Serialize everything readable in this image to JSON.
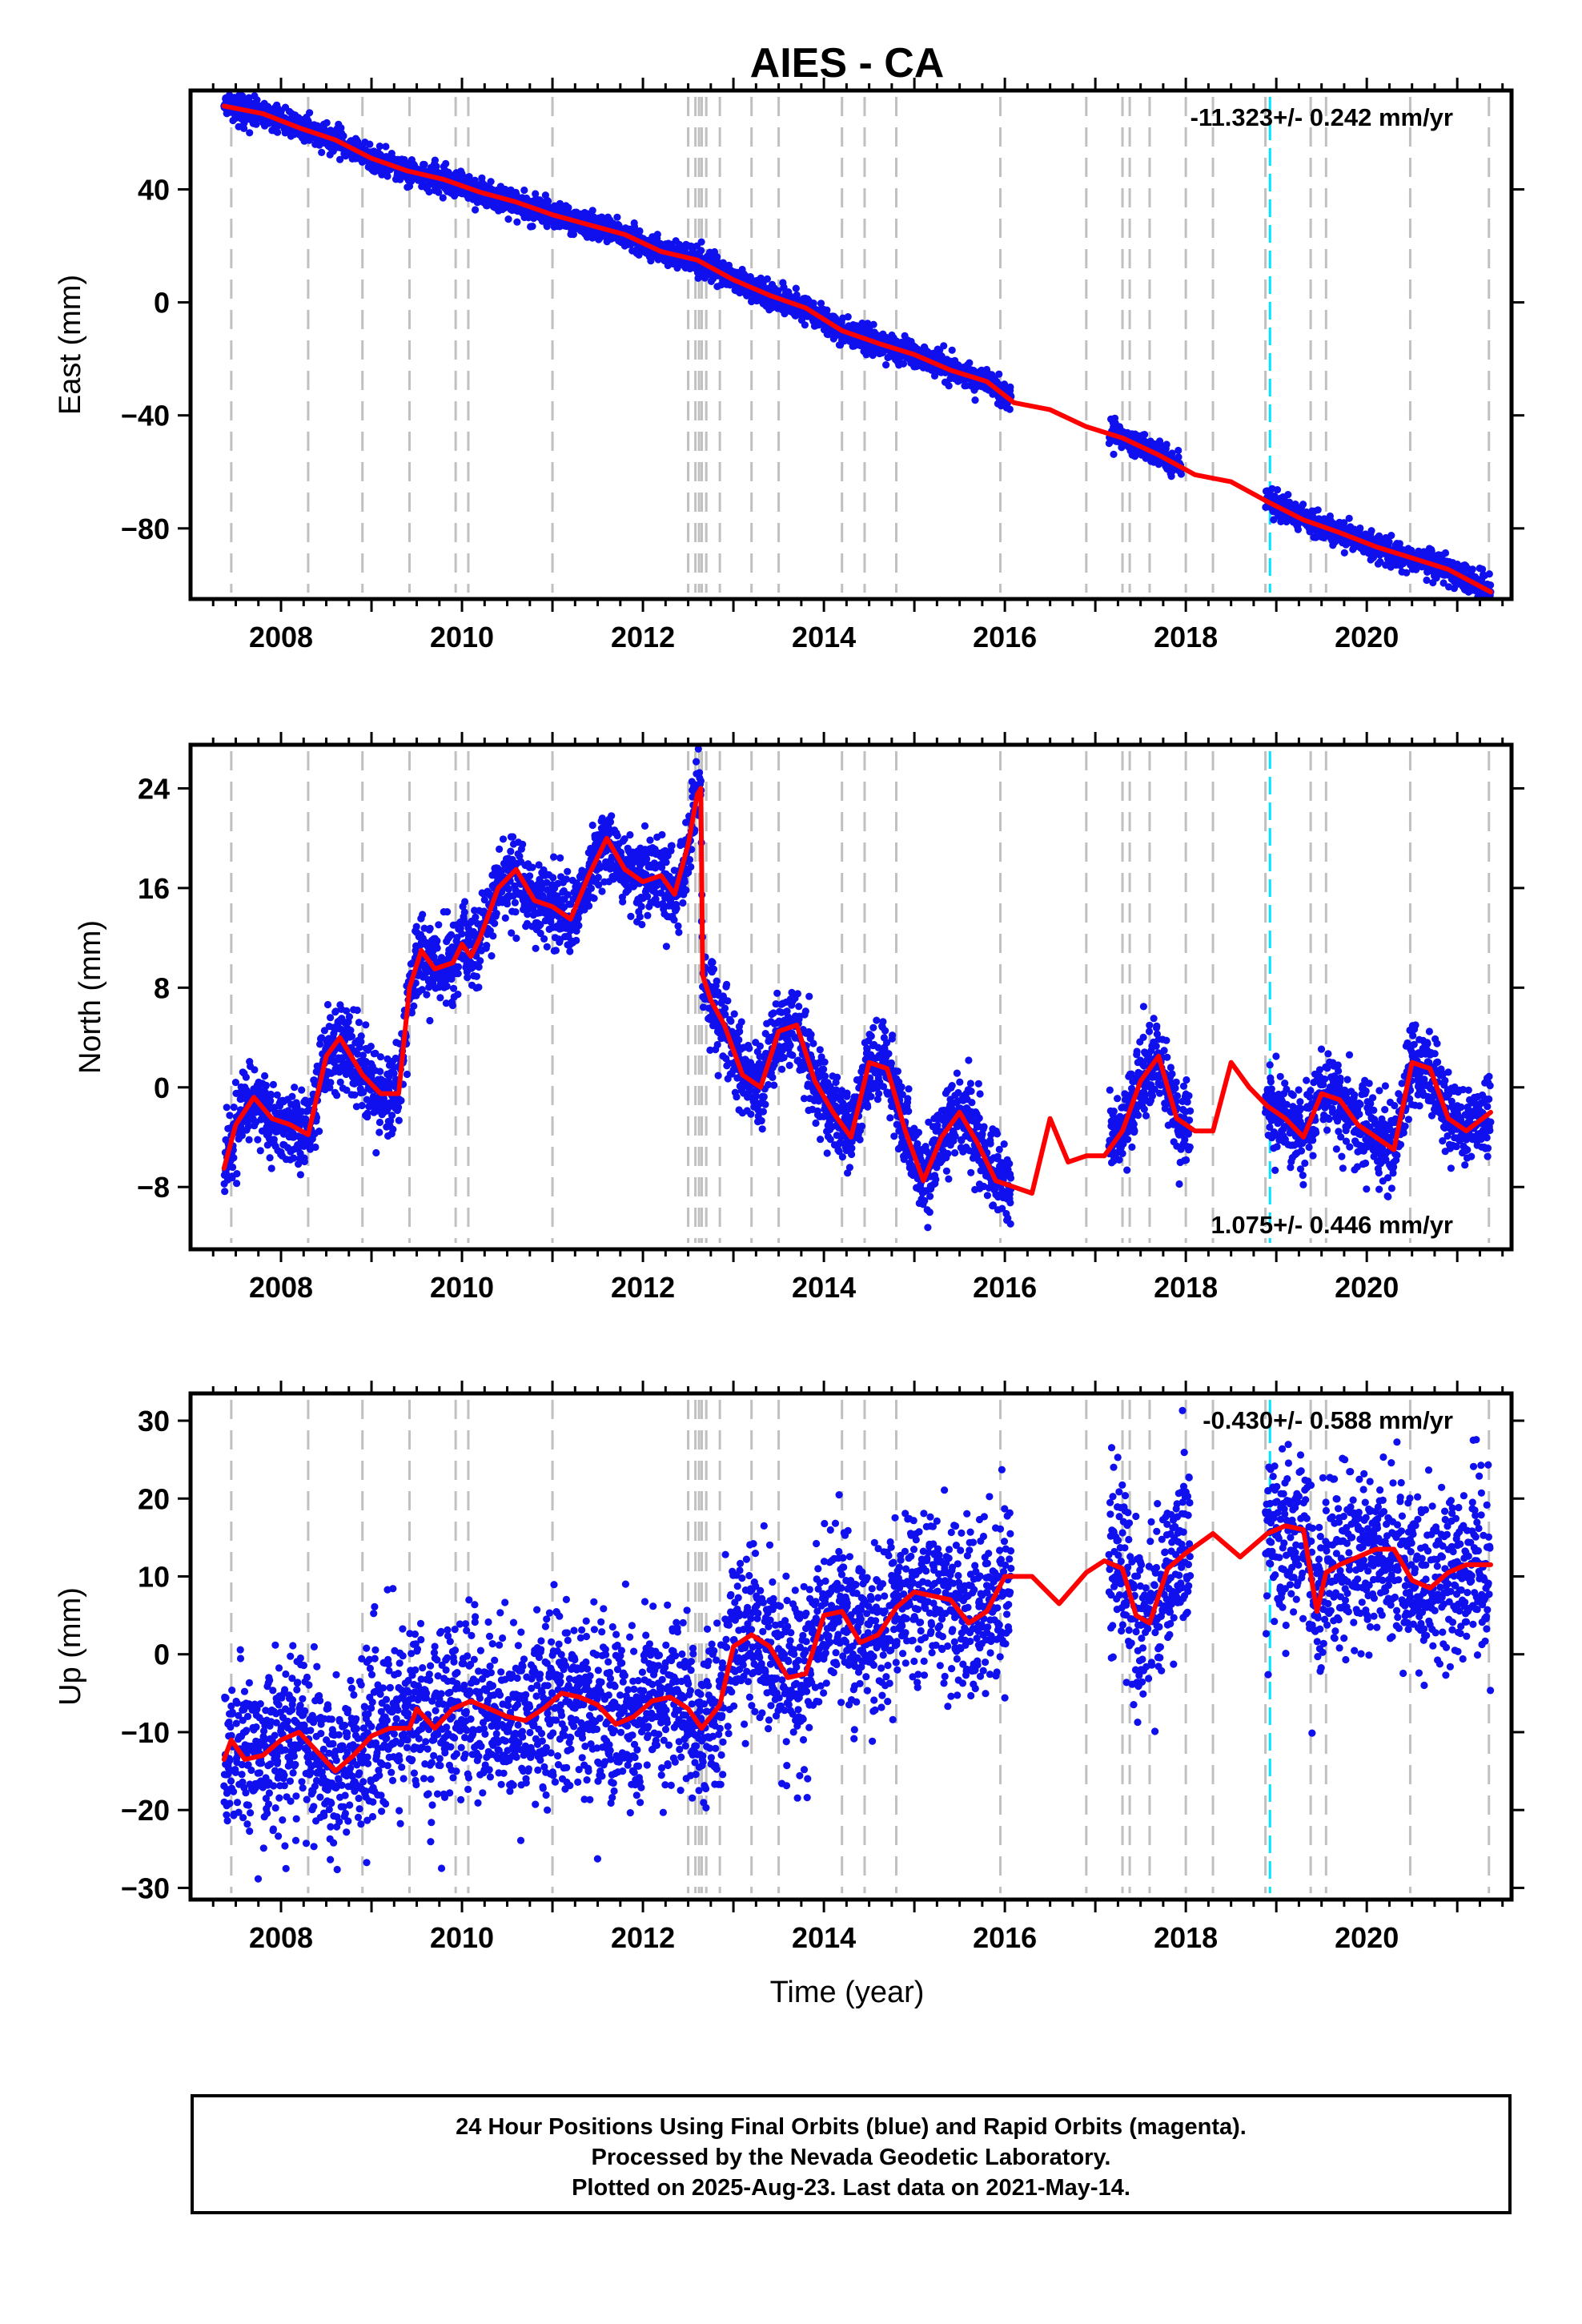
{
  "page": {
    "title": "AIES - CA",
    "xlabel": "Time (year)",
    "footer_lines": [
      "24 Hour Positions Using Final Orbits (blue) and Rapid Orbits (magenta).",
      "Processed by the Nevada Geodetic Laboratory.",
      "Plotted on 2025-Aug-23. Last data on 2021-May-14."
    ]
  },
  "colors": {
    "data": "#1010ee",
    "model": "#ff0000",
    "steps": "#c0c0c0",
    "cyan_step": "#00e5ff",
    "frame": "#000000"
  },
  "chart_data": [
    {
      "type": "scatter",
      "name": "east",
      "ylabel": "East (mm)",
      "rate_label": "-11.323+/- 0.242 mm/yr",
      "rate_position": "top-right",
      "xlim": [
        2007.0,
        2021.6
      ],
      "ylim": [
        -105,
        75
      ],
      "x_ticks": [
        2008,
        2010,
        2012,
        2014,
        2016,
        2018,
        2020
      ],
      "y_ticks": [
        40,
        0,
        -40,
        -80
      ],
      "x_tick_labels": [
        "2008",
        "2010",
        "2012",
        "2014",
        "2016",
        "2018",
        "2020"
      ],
      "y_tick_labels": [
        "40",
        "0",
        "−40",
        "−80"
      ],
      "data_segments": [
        [
          2007.37,
          2016.07
        ],
        [
          2017.15,
          2017.95
        ],
        [
          2018.88,
          2021.37
        ]
      ],
      "model": {
        "x": [
          2007.37,
          2007.8,
          2008.2,
          2008.6,
          2009.0,
          2009.4,
          2009.8,
          2010.2,
          2010.6,
          2011.0,
          2011.4,
          2011.8,
          2012.2,
          2012.6,
          2013.0,
          2013.4,
          2013.8,
          2014.2,
          2014.6,
          2015.0,
          2015.4,
          2015.8,
          2016.1,
          2016.5,
          2016.9,
          2017.3,
          2017.7,
          2018.1,
          2018.5,
          2018.9,
          2019.3,
          2019.7,
          2020.1,
          2020.5,
          2020.9,
          2021.37
        ],
        "y": [
          69.5,
          66.8,
          61.8,
          57.5,
          51.0,
          46.5,
          43.5,
          39.0,
          35.5,
          31.0,
          27.5,
          24.0,
          18.0,
          15.0,
          8.0,
          2.5,
          -2.0,
          -10.0,
          -14.5,
          -18.5,
          -24.0,
          -28.0,
          -35.5,
          -38.0,
          -44.0,
          -48.0,
          -54.0,
          -61.0,
          -63.5,
          -70.5,
          -77.0,
          -81.5,
          -86.5,
          -90.5,
          -94.5,
          -102.5
        ]
      },
      "scatter_scale": 2.2,
      "step_epochs": [
        2007.45,
        2008.3,
        2008.9,
        2009.42,
        2009.93,
        2010.07,
        2011.0,
        2012.5,
        2012.58,
        2012.62,
        2012.65,
        2012.7,
        2012.85,
        2013.2,
        2013.5,
        2014.2,
        2014.45,
        2014.8,
        2015.95,
        2016.9,
        2017.3,
        2017.38,
        2017.6,
        2018.0,
        2018.3,
        2018.88,
        2019.38,
        2019.55,
        2020.48,
        2021.35
      ],
      "cyan_epoch": 2018.93
    },
    {
      "type": "scatter",
      "name": "north",
      "ylabel": "North (mm)",
      "rate_label": "1.075+/- 0.446 mm/yr",
      "rate_position": "bottom-right",
      "xlim": [
        2007.0,
        2021.6
      ],
      "ylim": [
        -13,
        27.5
      ],
      "x_ticks": [
        2008,
        2010,
        2012,
        2014,
        2016,
        2018,
        2020
      ],
      "y_ticks": [
        24,
        16,
        8,
        0,
        -8
      ],
      "x_tick_labels": [
        "2008",
        "2010",
        "2012",
        "2014",
        "2016",
        "2018",
        "2020"
      ],
      "y_tick_labels": [
        "24",
        "16",
        "8",
        "0",
        "−8"
      ],
      "data_segments": [
        [
          2007.37,
          2016.07
        ],
        [
          2017.15,
          2018.05
        ],
        [
          2018.88,
          2021.37
        ]
      ],
      "model": {
        "x": [
          2007.37,
          2007.5,
          2007.7,
          2007.9,
          2008.1,
          2008.3,
          2008.5,
          2008.65,
          2008.9,
          2009.1,
          2009.3,
          2009.42,
          2009.55,
          2009.7,
          2009.9,
          2010.0,
          2010.1,
          2010.2,
          2010.4,
          2010.6,
          2010.8,
          2011.0,
          2011.2,
          2011.4,
          2011.6,
          2011.8,
          2012.0,
          2012.2,
          2012.35,
          2012.5,
          2012.6,
          2012.64,
          2012.66,
          2012.75,
          2012.9,
          2013.1,
          2013.3,
          2013.5,
          2013.7,
          2013.9,
          2014.1,
          2014.3,
          2014.5,
          2014.7,
          2014.9,
          2015.1,
          2015.3,
          2015.5,
          2015.7,
          2015.9,
          2016.1,
          2016.3,
          2016.5,
          2016.7,
          2016.9,
          2017.1,
          2017.3,
          2017.5,
          2017.7,
          2017.9,
          2018.1,
          2018.3,
          2018.5,
          2018.7,
          2018.9,
          2019.1,
          2019.3,
          2019.5,
          2019.7,
          2019.9,
          2020.1,
          2020.3,
          2020.5,
          2020.7,
          2020.9,
          2021.1,
          2021.37
        ],
        "y": [
          -6.5,
          -3.0,
          -0.8,
          -2.5,
          -3.0,
          -3.8,
          2.5,
          4.0,
          1.0,
          -0.5,
          -0.5,
          8.0,
          11.0,
          9.5,
          10.0,
          11.5,
          10.5,
          12.0,
          16.0,
          17.5,
          15.0,
          14.5,
          13.5,
          17.0,
          20.0,
          17.5,
          16.5,
          17.0,
          15.5,
          19.5,
          23.5,
          24.0,
          9.0,
          7.0,
          5.0,
          1.0,
          0.0,
          4.5,
          5.0,
          0.5,
          -2.0,
          -4.0,
          2.0,
          1.5,
          -3.5,
          -7.5,
          -4.0,
          -2.0,
          -4.5,
          -7.5,
          -8.0,
          -8.5,
          -2.5,
          -6.0,
          -5.5,
          -5.5,
          -3.5,
          0.5,
          2.5,
          -2.5,
          -3.5,
          -3.5,
          2.0,
          0.0,
          -1.5,
          -2.5,
          -4.0,
          -0.5,
          -1.0,
          -3.0,
          -4.0,
          -5.0,
          2.0,
          1.5,
          -2.5,
          -3.5,
          -2.0
        ],
        "jump_after": 31
      },
      "scatter_scale": 1.6,
      "step_epochs": [
        2007.45,
        2008.3,
        2008.9,
        2009.42,
        2009.93,
        2010.07,
        2011.0,
        2012.5,
        2012.58,
        2012.62,
        2012.65,
        2012.7,
        2012.85,
        2013.2,
        2013.5,
        2014.2,
        2014.45,
        2014.8,
        2015.95,
        2016.9,
        2017.3,
        2017.38,
        2017.6,
        2018.0,
        2018.3,
        2018.88,
        2019.38,
        2019.55,
        2020.48,
        2021.35
      ],
      "cyan_epoch": 2018.93
    },
    {
      "type": "scatter",
      "name": "up",
      "ylabel": "Up (mm)",
      "rate_label": "-0.430+/- 0.588 mm/yr",
      "rate_position": "top-right",
      "xlim": [
        2007.0,
        2021.6
      ],
      "ylim": [
        -31.5,
        33.5
      ],
      "x_ticks": [
        2008,
        2010,
        2012,
        2014,
        2016,
        2018,
        2020
      ],
      "y_ticks": [
        30,
        20,
        10,
        0,
        -10,
        -20,
        -30
      ],
      "x_tick_labels": [
        "2008",
        "2010",
        "2012",
        "2014",
        "2016",
        "2018",
        "2020"
      ],
      "y_tick_labels": [
        "30",
        "20",
        "10",
        "0",
        "−10",
        "−20",
        "−30"
      ],
      "data_segments": [
        [
          2007.37,
          2016.07
        ],
        [
          2017.15,
          2018.05
        ],
        [
          2018.88,
          2021.37
        ]
      ],
      "model": {
        "x": [
          2007.37,
          2007.45,
          2007.6,
          2007.8,
          2008.0,
          2008.2,
          2008.4,
          2008.6,
          2008.8,
          2009.0,
          2009.2,
          2009.42,
          2009.5,
          2009.7,
          2009.9,
          2010.1,
          2010.3,
          2010.5,
          2010.7,
          2010.9,
          2011.1,
          2011.3,
          2011.5,
          2011.7,
          2011.9,
          2012.1,
          2012.3,
          2012.5,
          2012.65,
          2012.75,
          2012.85,
          2013.0,
          2013.2,
          2013.4,
          2013.6,
          2013.8,
          2014.0,
          2014.2,
          2014.4,
          2014.6,
          2014.8,
          2015.0,
          2015.2,
          2015.4,
          2015.6,
          2015.8,
          2016.0,
          2016.3,
          2016.6,
          2016.9,
          2017.1,
          2017.3,
          2017.45,
          2017.6,
          2017.8,
          2018.0,
          2018.3,
          2018.6,
          2018.9,
          2019.1,
          2019.3,
          2019.45,
          2019.55,
          2019.7,
          2019.9,
          2020.1,
          2020.3,
          2020.5,
          2020.7,
          2020.9,
          2021.1,
          2021.37
        ],
        "y": [
          -13.5,
          -11.0,
          -13.5,
          -13.0,
          -11.0,
          -10.0,
          -12.5,
          -15.0,
          -13.0,
          -10.5,
          -9.5,
          -9.5,
          -7.0,
          -9.5,
          -7.0,
          -6.0,
          -7.0,
          -8.0,
          -8.5,
          -7.0,
          -5.0,
          -5.5,
          -6.5,
          -9.0,
          -8.0,
          -6.0,
          -5.5,
          -7.0,
          -9.5,
          -8.0,
          -6.5,
          1.0,
          2.5,
          1.0,
          -3.0,
          -2.5,
          5.0,
          5.5,
          1.5,
          2.5,
          6.0,
          8.0,
          7.5,
          7.0,
          4.0,
          5.5,
          10.0,
          10.0,
          6.5,
          10.5,
          12.0,
          11.0,
          5.0,
          4.0,
          11.0,
          13.0,
          15.5,
          12.5,
          15.5,
          16.5,
          16.0,
          5.5,
          10.5,
          11.5,
          12.5,
          13.5,
          13.5,
          9.5,
          8.5,
          10.5,
          11.5,
          11.5
        ]
      },
      "scatter_scale": 5.5,
      "step_epochs": [
        2007.45,
        2008.3,
        2008.9,
        2009.42,
        2009.93,
        2010.07,
        2011.0,
        2012.5,
        2012.58,
        2012.62,
        2012.65,
        2012.7,
        2012.85,
        2013.2,
        2013.5,
        2014.2,
        2014.45,
        2014.8,
        2015.95,
        2016.9,
        2017.3,
        2017.38,
        2017.6,
        2018.0,
        2018.3,
        2018.88,
        2019.38,
        2019.55,
        2020.48,
        2021.35
      ],
      "cyan_epoch": 2018.93
    }
  ]
}
